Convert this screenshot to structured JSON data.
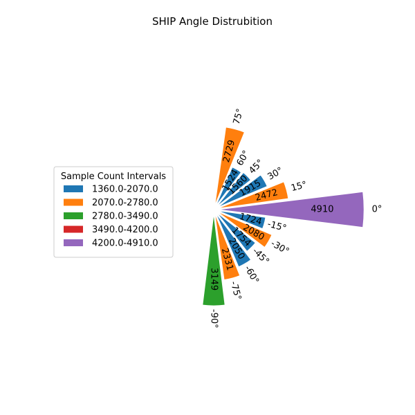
{
  "chart_data": {
    "type": "polar-bar",
    "title": "SHIP Angle Distrubition",
    "angle_unit": "°",
    "angles": [
      -90,
      -75,
      -60,
      -45,
      -30,
      -15,
      0,
      15,
      30,
      45,
      60,
      75
    ],
    "angle_labels": [
      "-90°",
      "-75°",
      "-60°",
      "-45°",
      "-30°",
      "-15°",
      "0°",
      "15°",
      "30°",
      "45°",
      "60°",
      "75°"
    ],
    "values": [
      3149,
      2331,
      2050,
      1754,
      2080,
      1724,
      4910,
      2472,
      1915,
      1560,
      1524,
      2729
    ],
    "value_labels": [
      "3149",
      "2331",
      "2050",
      "1754",
      "2080",
      "1724",
      "4910",
      "2472",
      "1915",
      "1560",
      "1524",
      "2729"
    ],
    "legend": {
      "title": "Sample Count Intervals",
      "placement": "left",
      "entries": [
        {
          "label": "1360.0-2070.0",
          "color": "#1f77b4"
        },
        {
          "label": "2070.0-2780.0",
          "color": "#ff7f0e"
        },
        {
          "label": "2780.0-3490.0",
          "color": "#2ca02c"
        },
        {
          "label": "3490.0-4200.0",
          "color": "#d62728"
        },
        {
          "label": "4200.0-4910.0",
          "color": "#9467bd"
        }
      ]
    },
    "interval_bounds": [
      1360,
      2070,
      2780,
      3490,
      4200,
      4910
    ],
    "radial_max": 4910,
    "grid": false
  }
}
